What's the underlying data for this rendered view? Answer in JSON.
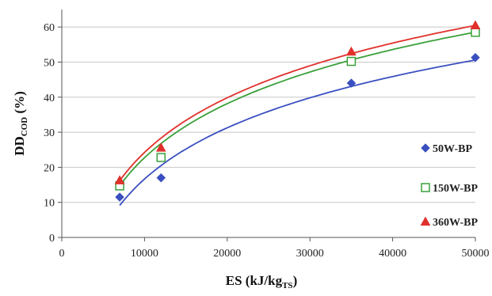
{
  "chart_data": {
    "type": "scatter",
    "title": "",
    "xlabel_main": "ES (kJ/kg",
    "xlabel_sub": "TS",
    "xlabel_end": ")",
    "ylabel_main": "DD",
    "ylabel_sub": "COD",
    "ylabel_end": " (%)",
    "xlim": [
      0,
      50000
    ],
    "ylim": [
      0,
      65
    ],
    "xticks": [
      0,
      10000,
      20000,
      30000,
      40000,
      50000
    ],
    "yticks": [
      0,
      10,
      20,
      30,
      40,
      50,
      60
    ],
    "grid": "horizontal",
    "legend_position": "right",
    "series": [
      {
        "name": "50W-BP",
        "marker": "diamond",
        "color": "#3a4fc0",
        "x": [
          7000,
          12000,
          35000,
          50000
        ],
        "y": [
          11.5,
          17,
          44,
          51.3
        ],
        "fit": {
          "type": "log",
          "a": 21.08,
          "b": -177.5,
          "x_start": 7000,
          "x_end": 50000
        }
      },
      {
        "name": "150W-BP",
        "marker": "square-open",
        "color": "#3aa03a",
        "x": [
          7000,
          12000,
          35000,
          50000
        ],
        "y": [
          14.7,
          22.8,
          50.2,
          58.5
        ],
        "fit": {
          "type": "log",
          "a": 22.25,
          "b": -182.2,
          "x_start": 7000,
          "x_end": 50000
        }
      },
      {
        "name": "360W-BP",
        "marker": "triangle",
        "color": "#e0302b",
        "x": [
          7000,
          12000,
          35000,
          50000
        ],
        "y": [
          16.3,
          25.6,
          53,
          60.5
        ],
        "fit": {
          "type": "log",
          "a": 22.5,
          "b": -183.0,
          "x_start": 7000,
          "x_end": 50000
        }
      }
    ]
  }
}
